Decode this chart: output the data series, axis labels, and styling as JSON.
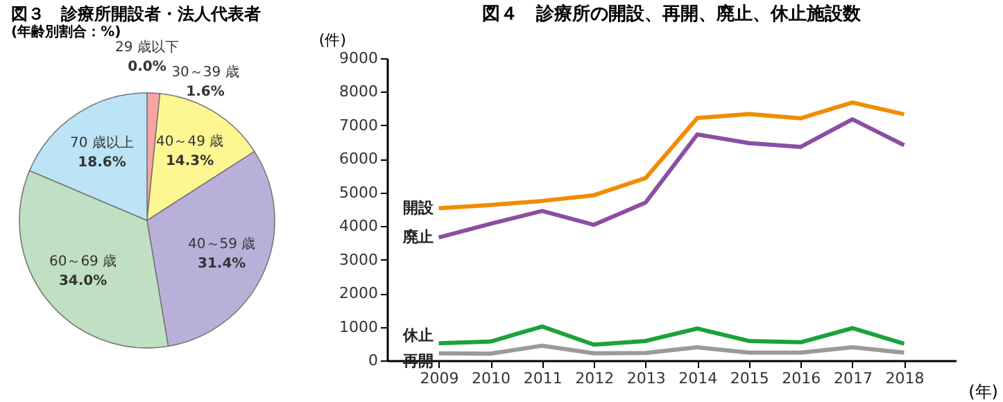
{
  "chart_data": [
    {
      "type": "pie",
      "title": "図３　診療所開設者・法人代表者",
      "subtitle": "(年齢別割合：%)",
      "categories": [
        "29 歳以下",
        "30～39 歳",
        "40～49 歳",
        "40～59 歳",
        "60～69 歳",
        "70 歳以上"
      ],
      "values": [
        0.0,
        1.6,
        14.3,
        31.4,
        34.0,
        18.6
      ],
      "value_labels": [
        "0.0%",
        "1.6%",
        "14.3%",
        "31.4%",
        "34.0%",
        "18.6%"
      ],
      "colors": [
        "#f4a9a8",
        "#f6a5a4",
        "#fdf792",
        "#b9b0d9",
        "#bfe0c2",
        "#bde3f7"
      ],
      "legend": false
    },
    {
      "type": "line",
      "title": "図４　診療所の開設、再開、廃止、休止施設数",
      "xlabel": "(年)",
      "ylabel": "(件)",
      "categories": [
        "2009",
        "2010",
        "2011",
        "2012",
        "2013",
        "2014",
        "2015",
        "2016",
        "2017",
        "2018"
      ],
      "ylim": [
        0,
        9000
      ],
      "yticks": [
        0,
        1000,
        2000,
        3000,
        4000,
        5000,
        6000,
        7000,
        8000,
        9000
      ],
      "grid": false,
      "legend": false,
      "marker": "none",
      "line_style": "solid",
      "series": [
        {
          "name": "開設",
          "color": "#f28c00",
          "values": [
            4530,
            4630,
            4750,
            4920,
            5430,
            7220,
            7340,
            7210,
            7680,
            7330
          ]
        },
        {
          "name": "廃止",
          "color": "#8a4fa3",
          "values": [
            3660,
            4070,
            4450,
            4040,
            4700,
            6730,
            6470,
            6360,
            7180,
            6410
          ]
        },
        {
          "name": "休止",
          "color": "#1aa33a",
          "values": [
            510,
            560,
            1010,
            470,
            580,
            950,
            580,
            540,
            960,
            500
          ]
        },
        {
          "name": "再開",
          "color": "#9a9a9a",
          "values": [
            210,
            200,
            440,
            210,
            220,
            390,
            230,
            230,
            390,
            230
          ]
        }
      ]
    }
  ]
}
